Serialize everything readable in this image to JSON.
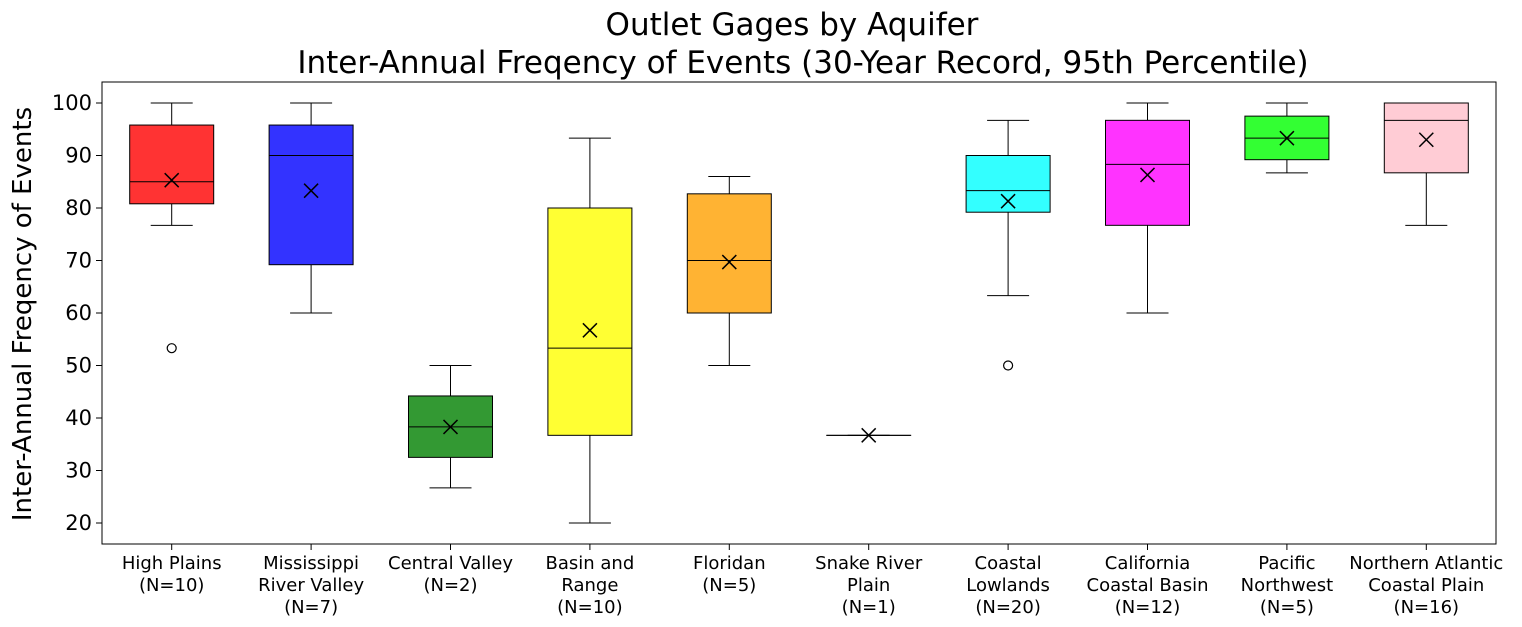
{
  "chart_data": {
    "type": "box",
    "title": [
      "Outlet Gages by Aquifer",
      "Inter-Annual Freqency of Events (30-Year Record, 95th Percentile)"
    ],
    "ylabel": "Inter-Annual Freqency of Events",
    "ylim": [
      16,
      104
    ],
    "yticks": [
      20,
      30,
      40,
      50,
      60,
      70,
      80,
      90,
      100
    ],
    "grid": false,
    "categories": [
      {
        "label": [
          "High Plains",
          "(N=10)"
        ],
        "color": "#ff3333",
        "whisker_low": 76.7,
        "q1": 80.8,
        "median": 85.0,
        "q3": 95.8,
        "whisker_high": 100,
        "mean": 85.3,
        "outliers": [
          53.3
        ]
      },
      {
        "label": [
          "Mississippi",
          "River Valley",
          "(N=7)"
        ],
        "color": "#3333ff",
        "whisker_low": 60.0,
        "q1": 69.2,
        "median": 90.0,
        "q3": 95.8,
        "whisker_high": 100,
        "mean": 83.3,
        "outliers": []
      },
      {
        "label": [
          "Central Valley",
          "(N=2)"
        ],
        "color": "#339933",
        "whisker_low": 26.7,
        "q1": 32.5,
        "median": 38.3,
        "q3": 44.2,
        "whisker_high": 50.0,
        "mean": 38.3,
        "outliers": []
      },
      {
        "label": [
          "Basin and",
          "Range",
          "(N=10)"
        ],
        "color": "#ffff33",
        "whisker_low": 20.0,
        "q1": 36.7,
        "median": 53.3,
        "q3": 80.0,
        "whisker_high": 93.3,
        "mean": 56.7,
        "outliers": []
      },
      {
        "label": [
          "Floridan",
          "(N=5)"
        ],
        "color": "#ffb333",
        "whisker_low": 50.0,
        "q1": 60.0,
        "median": 70.0,
        "q3": 82.7,
        "whisker_high": 86.0,
        "mean": 69.7,
        "outliers": []
      },
      {
        "label": [
          "Snake River",
          "Plain",
          "(N=1)"
        ],
        "color": "#ffffff",
        "whisker_low": 36.7,
        "q1": 36.7,
        "median": 36.7,
        "q3": 36.7,
        "whisker_high": 36.7,
        "mean": 36.7,
        "outliers": []
      },
      {
        "label": [
          "Coastal",
          "Lowlands",
          "(N=20)"
        ],
        "color": "#33ffff",
        "whisker_low": 63.3,
        "q1": 79.2,
        "median": 83.3,
        "q3": 90.0,
        "whisker_high": 96.7,
        "mean": 81.3,
        "outliers": [
          50.0
        ]
      },
      {
        "label": [
          "California",
          "Coastal Basin",
          "(N=12)"
        ],
        "color": "#ff33ff",
        "whisker_low": 60.0,
        "q1": 76.7,
        "median": 88.3,
        "q3": 96.7,
        "whisker_high": 100,
        "mean": 86.3,
        "outliers": []
      },
      {
        "label": [
          "Pacific",
          "Northwest",
          "(N=5)"
        ],
        "color": "#33ff33",
        "whisker_low": 86.7,
        "q1": 89.2,
        "median": 93.3,
        "q3": 97.5,
        "whisker_high": 100,
        "mean": 93.3,
        "outliers": []
      },
      {
        "label": [
          "Northern Atlantic",
          "Coastal Plain",
          "(N=16)"
        ],
        "color": "#ffccd5",
        "whisker_low": 76.7,
        "q1": 86.7,
        "median": 96.7,
        "q3": 100,
        "whisker_high": 100,
        "mean": 93.0,
        "outliers": []
      }
    ]
  }
}
